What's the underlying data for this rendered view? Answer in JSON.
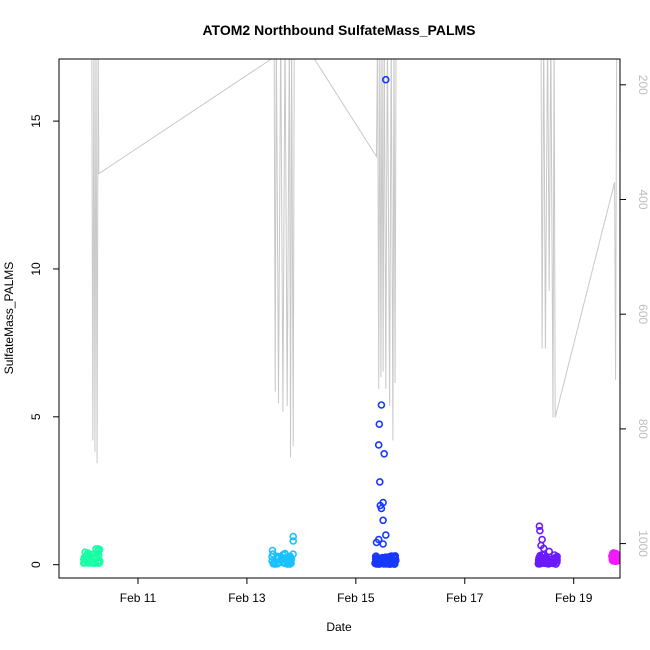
{
  "chart_data": {
    "type": "scatter",
    "title": "ATOM2 Northbound SulfateMass_PALMS",
    "xlabel": "Date",
    "ylabel": "SulfateMass_PALMS",
    "x_start_date": "2017-02-10",
    "xlim_days": [
      9.55,
      19.85
    ],
    "ylim": [
      -0.45,
      17.1
    ],
    "y2lim": [
      1060,
      155
    ],
    "x_ticks": [
      {
        "value": 11,
        "label": "Feb 11"
      },
      {
        "value": 13,
        "label": "Feb 13"
      },
      {
        "value": 15,
        "label": "Feb 15"
      },
      {
        "value": 17,
        "label": "Feb 17"
      },
      {
        "value": 19,
        "label": "Feb 19"
      }
    ],
    "y_ticks": [
      {
        "value": 0,
        "label": "0"
      },
      {
        "value": 5,
        "label": "5"
      },
      {
        "value": 10,
        "label": "10"
      },
      {
        "value": 15,
        "label": "15"
      }
    ],
    "y2_ticks": [
      {
        "value": 200,
        "label": "200"
      },
      {
        "value": 400,
        "label": "400"
      },
      {
        "value": 600,
        "label": "600"
      },
      {
        "value": 800,
        "label": "800"
      },
      {
        "value": 1000,
        "label": "1000"
      }
    ],
    "pressure_color": "#c8c8c8",
    "pressure_profile": [
      [
        10.15,
        100
      ],
      [
        10.17,
        820
      ],
      [
        10.19,
        100
      ],
      [
        10.21,
        840
      ],
      [
        10.23,
        100
      ],
      [
        10.25,
        860
      ],
      [
        10.27,
        100
      ],
      [
        10.28,
        355
      ],
      [
        13.45,
        155
      ],
      [
        13.5,
        100
      ],
      [
        13.52,
        735
      ],
      [
        13.54,
        100
      ],
      [
        13.58,
        755
      ],
      [
        13.62,
        100
      ],
      [
        13.66,
        770
      ],
      [
        13.7,
        100
      ],
      [
        13.74,
        760
      ],
      [
        13.78,
        100
      ],
      [
        13.8,
        850
      ],
      [
        13.82,
        100
      ],
      [
        13.85,
        830
      ],
      [
        13.87,
        100
      ],
      [
        15.38,
        325
      ],
      [
        15.4,
        100
      ],
      [
        15.42,
        730
      ],
      [
        15.44,
        100
      ],
      [
        15.46,
        710
      ],
      [
        15.48,
        100
      ],
      [
        15.5,
        700
      ],
      [
        15.52,
        100
      ],
      [
        15.55,
        730
      ],
      [
        15.58,
        100
      ],
      [
        15.62,
        760
      ],
      [
        15.65,
        100
      ],
      [
        15.68,
        820
      ],
      [
        15.7,
        100
      ],
      [
        15.72,
        720
      ],
      [
        15.74,
        100
      ],
      [
        18.4,
        100
      ],
      [
        18.42,
        660
      ],
      [
        18.45,
        100
      ],
      [
        18.48,
        660
      ],
      [
        18.52,
        100
      ],
      [
        18.55,
        560
      ],
      [
        18.58,
        100
      ],
      [
        18.62,
        780
      ],
      [
        18.64,
        100
      ],
      [
        18.66,
        780
      ],
      [
        19.75,
        370
      ],
      [
        19.77,
        715
      ],
      [
        19.79,
        100
      ]
    ],
    "series": [
      {
        "color": "#19ffa5",
        "x_range": [
          10.0,
          10.3
        ],
        "y_range": [
          0.05,
          0.55
        ],
        "count": 60,
        "extra": []
      },
      {
        "color": "#1ac1ff",
        "x_range": [
          13.45,
          13.85
        ],
        "y_range": [
          0.02,
          0.4
        ],
        "count": 45,
        "extra": [
          [
            13.47,
            0.48
          ],
          [
            13.85,
            0.95
          ],
          [
            13.85,
            0.8
          ],
          [
            13.7,
            0.38
          ]
        ]
      },
      {
        "color": "#1938ff",
        "x_range": [
          15.35,
          15.75
        ],
        "y_range": [
          0.02,
          0.3
        ],
        "count": 80,
        "extra": [
          [
            15.55,
            16.4
          ],
          [
            15.47,
            5.4
          ],
          [
            15.43,
            4.75
          ],
          [
            15.42,
            4.05
          ],
          [
            15.52,
            3.75
          ],
          [
            15.44,
            2.8
          ],
          [
            15.5,
            2.1
          ],
          [
            15.45,
            2.0
          ],
          [
            15.47,
            1.9
          ],
          [
            15.5,
            1.5
          ],
          [
            15.55,
            1.0
          ],
          [
            15.42,
            0.85
          ],
          [
            15.5,
            0.7
          ],
          [
            15.38,
            0.75
          ]
        ]
      },
      {
        "color": "#6b1aff",
        "x_range": [
          18.35,
          18.7
        ],
        "y_range": [
          0.02,
          0.35
        ],
        "count": 60,
        "extra": [
          [
            18.37,
            1.3
          ],
          [
            18.38,
            1.15
          ],
          [
            18.42,
            0.85
          ],
          [
            18.4,
            0.65
          ],
          [
            18.45,
            0.55
          ],
          [
            18.55,
            0.45
          ]
        ]
      },
      {
        "color": "#f21aff",
        "x_range": [
          19.7,
          19.8
        ],
        "y_range": [
          0.1,
          0.42
        ],
        "count": 25,
        "extra": []
      }
    ]
  }
}
